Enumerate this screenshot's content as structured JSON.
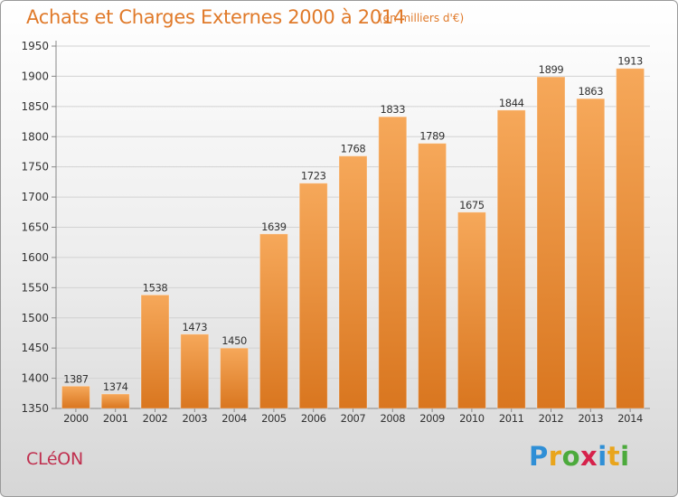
{
  "header": {
    "title": "Achats et Charges Externes 2000 à 2014",
    "subtitle": "(en milliers d'€)"
  },
  "footer": {
    "commune": "CLéON",
    "brand": "Proxiti",
    "brand_letters": [
      "P",
      "r",
      "o",
      "x",
      "i",
      "t",
      "i"
    ],
    "brand_colors": [
      "#2f8fd6",
      "#e9a51c",
      "#4caa3c",
      "#d6224b",
      "#2f8fd6",
      "#e9a51c",
      "#4caa3c"
    ]
  },
  "colors": {
    "bar_light": "#f6a85a",
    "bar_dark": "#d9761f",
    "accent": "#e07a2a"
  },
  "chart_data": {
    "type": "bar",
    "title": "Achats et Charges Externes 2000 à 2014",
    "subtitle": "(en milliers d'€)",
    "categories": [
      "2000",
      "2001",
      "2002",
      "2003",
      "2004",
      "2005",
      "2006",
      "2007",
      "2008",
      "2009",
      "2010",
      "2011",
      "2012",
      "2013",
      "2014"
    ],
    "values": [
      1387,
      1374,
      1538,
      1473,
      1450,
      1639,
      1723,
      1768,
      1833,
      1789,
      1675,
      1844,
      1899,
      1863,
      1913
    ],
    "ylim": [
      1350,
      1950
    ],
    "yticks": [
      1350,
      1400,
      1450,
      1500,
      1550,
      1600,
      1650,
      1700,
      1750,
      1800,
      1850,
      1900,
      1950
    ],
    "grid": true,
    "legend": "none"
  }
}
